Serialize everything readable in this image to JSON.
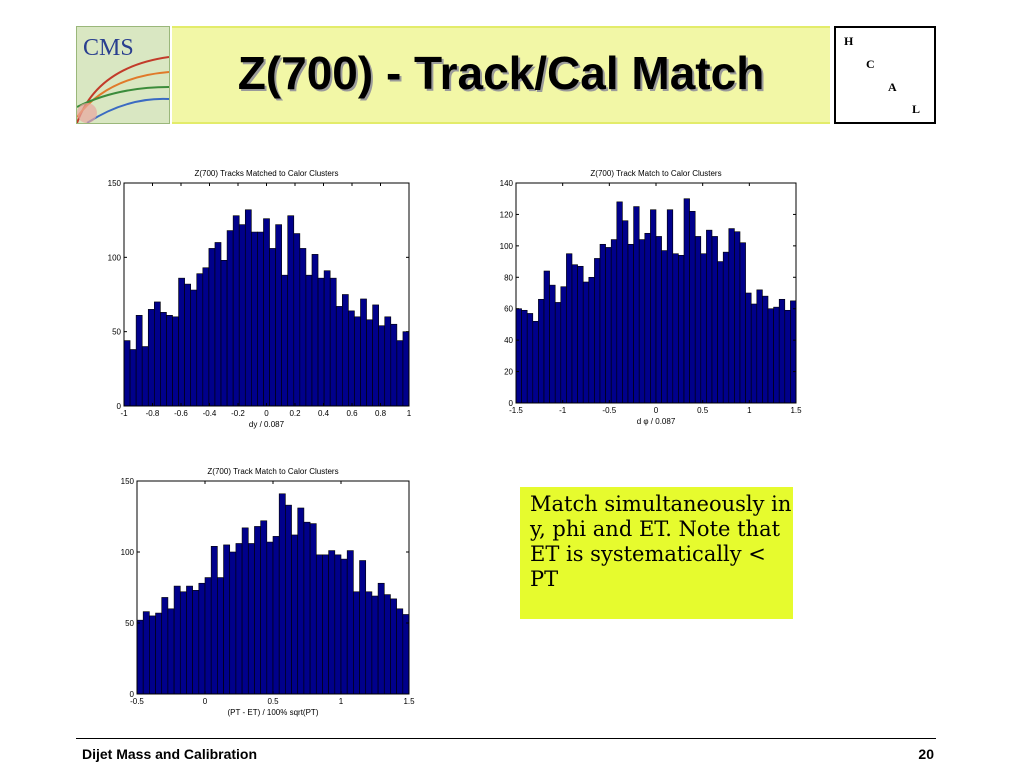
{
  "slide": {
    "title": "Z(700) - Track/Cal Match",
    "logo_text": "CMS",
    "hcal_letters": [
      "H",
      "C",
      "A",
      "L"
    ],
    "note": "Match simultaneously in y, phi and ET. Note that ET is systematically < PT",
    "footer_left": "Dijet Mass and Calibration",
    "footer_right": "20"
  },
  "chart_data": [
    {
      "type": "bar",
      "title": "Z(700) Tracks Matched to Calor Clusters",
      "xlabel": "dy / 0.087",
      "ylabel": "",
      "xlim": [
        -1,
        1
      ],
      "ylim": [
        0,
        150
      ],
      "xticks": [
        "-1",
        "-0.8",
        "-0.6",
        "-0.4",
        "-0.2",
        "0",
        "0.2",
        "0.4",
        "0.6",
        "0.8",
        "1"
      ],
      "yticks": [
        "0",
        "50",
        "100",
        "150"
      ],
      "bar_color": "#00008b",
      "values": [
        44,
        38,
        61,
        40,
        65,
        70,
        63,
        61,
        60,
        86,
        82,
        78,
        89,
        93,
        106,
        110,
        98,
        118,
        128,
        122,
        132,
        117,
        117,
        126,
        106,
        122,
        88,
        128,
        116,
        106,
        88,
        102,
        86,
        91,
        86,
        67,
        75,
        64,
        60,
        72,
        58,
        68,
        54,
        60,
        55,
        44,
        50
      ]
    },
    {
      "type": "bar",
      "title": "Z(700) Track Match to Calor Clusters",
      "xlabel": "d φ / 0.087",
      "ylabel": "",
      "xlim": [
        -1.5,
        1.5
      ],
      "ylim": [
        0,
        140
      ],
      "xticks": [
        "-1.5",
        "-1",
        "-0.5",
        "0",
        "0.5",
        "1",
        "1.5"
      ],
      "yticks": [
        "0",
        "20",
        "40",
        "60",
        "80",
        "100",
        "120",
        "140"
      ],
      "bar_color": "#00008b",
      "values": [
        60,
        59,
        57,
        52,
        66,
        84,
        75,
        64,
        74,
        95,
        88,
        87,
        77,
        80,
        92,
        101,
        99,
        104,
        128,
        116,
        101,
        125,
        104,
        108,
        123,
        106,
        97,
        123,
        95,
        94,
        130,
        122,
        106,
        95,
        110,
        106,
        90,
        96,
        111,
        109,
        102,
        70,
        63,
        72,
        68,
        60,
        61,
        66,
        59,
        65
      ]
    },
    {
      "type": "bar",
      "title": "Z(700) Track Match to Calor Clusters",
      "xlabel": "(PT - ET) / 100% sqrt(PT)",
      "ylabel": "",
      "xlim": [
        -0.5,
        1.5
      ],
      "ylim": [
        0,
        150
      ],
      "xticks": [
        "-0.5",
        "0",
        "0.5",
        "1",
        "1.5"
      ],
      "yticks": [
        "0",
        "50",
        "100",
        "150"
      ],
      "bar_color": "#00008b",
      "values": [
        52,
        58,
        55,
        57,
        68,
        60,
        76,
        72,
        76,
        73,
        78,
        82,
        104,
        82,
        105,
        100,
        106,
        117,
        106,
        118,
        122,
        107,
        111,
        141,
        133,
        112,
        131,
        121,
        120,
        98,
        98,
        101,
        98,
        95,
        101,
        72,
        94,
        72,
        69,
        78,
        70,
        67,
        60,
        56
      ]
    }
  ]
}
